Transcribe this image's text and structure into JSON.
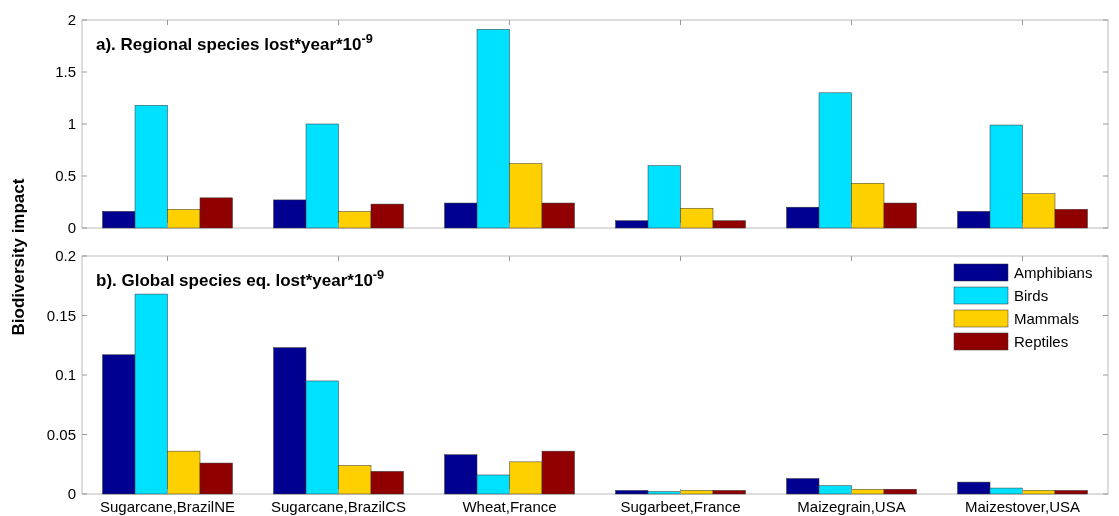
{
  "chart_data": [
    {
      "type": "bar",
      "title": "a). Regional species lost*year*10$^{-9}$",
      "categories": [
        null,
        null,
        null,
        null,
        null,
        null
      ],
      "series": [
        {
          "color": "#000090",
          "values": [
            0.16,
            0.27,
            0.24,
            0.07,
            0.2,
            0.16
          ]
        },
        {
          "color": "#00e0ff",
          "values": [
            1.18,
            1.0,
            1.91,
            0.6,
            1.3,
            0.99
          ]
        },
        {
          "color": "#ffd000",
          "values": [
            0.18,
            0.16,
            0.62,
            0.19,
            0.43,
            0.33
          ]
        },
        {
          "color": "#900000",
          "values": [
            0.29,
            0.23,
            0.24,
            0.07,
            0.24,
            0.18
          ]
        }
      ],
      "ylim": [
        0,
        2
      ],
      "yticks": [
        0,
        0.5,
        1,
        1.5,
        2
      ],
      "tick_labels": "y",
      "legend": false,
      "grid": false
    },
    {
      "type": "bar",
      "title": "b). Global species eq. lost*year*10$^{-9}$",
      "ylabel": "Biodiversity impact",
      "categories": [
        "Sugarcane,BrazilNE",
        "Sugarcane,BrazilCS",
        "Wheat,France",
        "Sugarbeet,France",
        "Maizegrain,USA",
        "Maizestover,USA"
      ],
      "series": [
        {
          "name": "Amphibians",
          "color": "#000090",
          "values": [
            0.117,
            0.123,
            0.033,
            0.003,
            0.013,
            0.01
          ]
        },
        {
          "name": "Birds",
          "color": "#00e0ff",
          "values": [
            0.168,
            0.095,
            0.016,
            0.002,
            0.007,
            0.005
          ]
        },
        {
          "name": "Mammals",
          "color": "#ffd000",
          "values": [
            0.036,
            0.024,
            0.027,
            0.003,
            0.004,
            0.003
          ]
        },
        {
          "name": "Reptiles",
          "color": "#900000",
          "values": [
            0.026,
            0.019,
            0.036,
            0.003,
            0.004,
            0.003
          ]
        }
      ],
      "ylim": [
        0,
        0.2
      ],
      "yticks": [
        0,
        0.05,
        0.1,
        0.15,
        0.2
      ],
      "legend": "top right",
      "grid": false
    }
  ]
}
